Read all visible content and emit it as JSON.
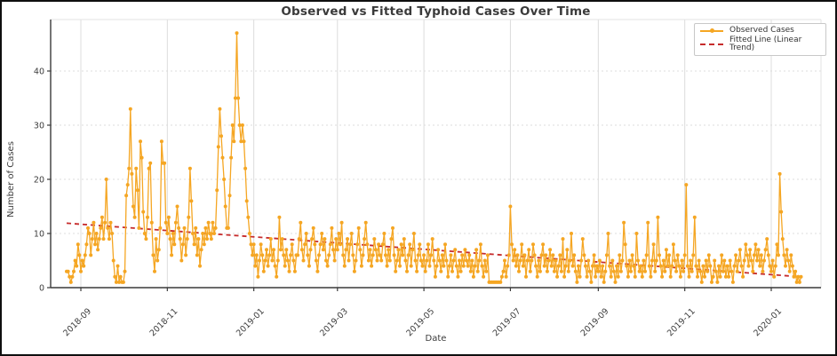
{
  "figure": {
    "title": "Observed vs Fitted Typhoid Cases Over Time",
    "xlabel": "Date",
    "ylabel": "Number of Cases"
  },
  "legend": {
    "observed_label": "Observed Cases",
    "fitted_label": "Fitted Line (Linear Trend)"
  },
  "colors": {
    "observed": "#F5A623",
    "fitted": "#C62B2B",
    "grid": "#DCDCDC",
    "axis": "#3A3A3A",
    "text": "#3C3C3C",
    "spine_light": "#E3E3E3",
    "legend_border": "#C8C8C8"
  },
  "chart_data": {
    "type": "line",
    "title": "Observed vs Fitted Typhoid Cases Over Time",
    "xlabel": "Date",
    "ylabel": "Number of Cases",
    "grid": true,
    "legend_position": "upper right",
    "ylim": [
      0,
      49.5
    ],
    "y_ticks": [
      0,
      10,
      20,
      30,
      40
    ],
    "x_start_date": "2018-08-22",
    "frequency": "daily",
    "x_ticks": [
      {
        "label": "2018-09",
        "day": 10
      },
      {
        "label": "2018-11",
        "day": 71
      },
      {
        "label": "2019-01",
        "day": 132
      },
      {
        "label": "2019-03",
        "day": 191
      },
      {
        "label": "2019-05",
        "day": 252
      },
      {
        "label": "2019-07",
        "day": 313
      },
      {
        "label": "2019-09",
        "day": 375
      },
      {
        "label": "2019-11",
        "day": 436
      },
      {
        "label": "2020-01",
        "day": 497
      }
    ],
    "series": [
      {
        "name": "Observed Cases",
        "style": "line-with-markers",
        "values": [
          3,
          3,
          2,
          1,
          2,
          3,
          5,
          4,
          8,
          6,
          3,
          5,
          4,
          6,
          8,
          11,
          10,
          6,
          9,
          12,
          8,
          10,
          7,
          9,
          11,
          13,
          9,
          12,
          20,
          11,
          9,
          12,
          10,
          5,
          2,
          1,
          4,
          1,
          2,
          1,
          1,
          3,
          17,
          19,
          22,
          33,
          21,
          15,
          13,
          22,
          18,
          11,
          27,
          24,
          14,
          10,
          9,
          13,
          22,
          23,
          12,
          6,
          3,
          9,
          5,
          7,
          11,
          27,
          23,
          23,
          12,
          10,
          13,
          9,
          6,
          10,
          8,
          12,
          15,
          11,
          9,
          5,
          8,
          11,
          6,
          9,
          13,
          22,
          16,
          10,
          8,
          11,
          6,
          9,
          4,
          7,
          10,
          8,
          11,
          9,
          12,
          10,
          9,
          12,
          10,
          11,
          18,
          26,
          33,
          28,
          24,
          20,
          15,
          11,
          11,
          17,
          24,
          30,
          27,
          35,
          47,
          35,
          30,
          27,
          30,
          27,
          22,
          16,
          13,
          10,
          8,
          6,
          8,
          4,
          6,
          2,
          5,
          8,
          6,
          3,
          5,
          7,
          4,
          6,
          9,
          5,
          7,
          4,
          2,
          5,
          13,
          7,
          9,
          6,
          4,
          7,
          5,
          3,
          6,
          8,
          5,
          3,
          6,
          6,
          9,
          12,
          7,
          5,
          8,
          10,
          6,
          4,
          7,
          9,
          11,
          8,
          5,
          3,
          6,
          8,
          10,
          7,
          9,
          5,
          4,
          6,
          8,
          11,
          7,
          5,
          9,
          7,
          10,
          8,
          12,
          6,
          4,
          7,
          9,
          5,
          8,
          10,
          6,
          3,
          5,
          8,
          11,
          7,
          4,
          6,
          9,
          12,
          8,
          5,
          7,
          4,
          6,
          9,
          7,
          5,
          8,
          6,
          5,
          8,
          10,
          6,
          4,
          7,
          5,
          9,
          11,
          6,
          3,
          5,
          7,
          4,
          8,
          6,
          9,
          5,
          3,
          6,
          8,
          4,
          7,
          10,
          5,
          3,
          6,
          8,
          5,
          4,
          6,
          3,
          5,
          8,
          4,
          6,
          9,
          5,
          2,
          4,
          7,
          5,
          3,
          6,
          4,
          8,
          5,
          2,
          4,
          6,
          3,
          5,
          7,
          4,
          2,
          5,
          3,
          6,
          4,
          7,
          5,
          4,
          6,
          3,
          5,
          2,
          4,
          7,
          3,
          5,
          8,
          4,
          2,
          5,
          3,
          6,
          1,
          1,
          1,
          1,
          1,
          1,
          1,
          1,
          1,
          2,
          3,
          5,
          2,
          4,
          6,
          15,
          8,
          5,
          7,
          4,
          6,
          3,
          5,
          8,
          4,
          6,
          2,
          5,
          7,
          3,
          5,
          8,
          6,
          4,
          2,
          5,
          3,
          6,
          8,
          4,
          6,
          3,
          5,
          7,
          4,
          6,
          3,
          5,
          2,
          4,
          6,
          3,
          9,
          2,
          4,
          7,
          3,
          5,
          10,
          4,
          6,
          3,
          1,
          4,
          2,
          5,
          9,
          6,
          4,
          2,
          5,
          3,
          1,
          4,
          6,
          2,
          4,
          3,
          5,
          2,
          4,
          1,
          3,
          6,
          10,
          4,
          2,
          5,
          3,
          1,
          4,
          2,
          6,
          3,
          5,
          12,
          8,
          4,
          2,
          5,
          3,
          6,
          4,
          2,
          10,
          5,
          3,
          4,
          2,
          5,
          3,
          6,
          12,
          4,
          2,
          5,
          8,
          3,
          5,
          13,
          6,
          4,
          2,
          5,
          3,
          7,
          4,
          6,
          2,
          4,
          8,
          5,
          3,
          6,
          4,
          2,
          5,
          3,
          6,
          19,
          4,
          2,
          5,
          3,
          6,
          13,
          4,
          2,
          5,
          3,
          1,
          4,
          2,
          5,
          3,
          6,
          4,
          1,
          2,
          5,
          3,
          1,
          4,
          2,
          6,
          3,
          5,
          2,
          4,
          2,
          5,
          3,
          1,
          4,
          6,
          3,
          5,
          7,
          4,
          2,
          5,
          8,
          6,
          4,
          7,
          5,
          3,
          6,
          8,
          5,
          7,
          4,
          6,
          3,
          5,
          7,
          9,
          6,
          4,
          3,
          5,
          2,
          4,
          8,
          6,
          21,
          14,
          9,
          6,
          4,
          7,
          5,
          3,
          6,
          4,
          2,
          3,
          1,
          2,
          1,
          2
        ]
      },
      {
        "name": "Fitted Line (Linear Trend)",
        "style": "dashed-line",
        "trend": {
          "start_day": 0,
          "end_day": 518,
          "start_value": 11.9,
          "end_value": 2.0
        }
      }
    ]
  }
}
